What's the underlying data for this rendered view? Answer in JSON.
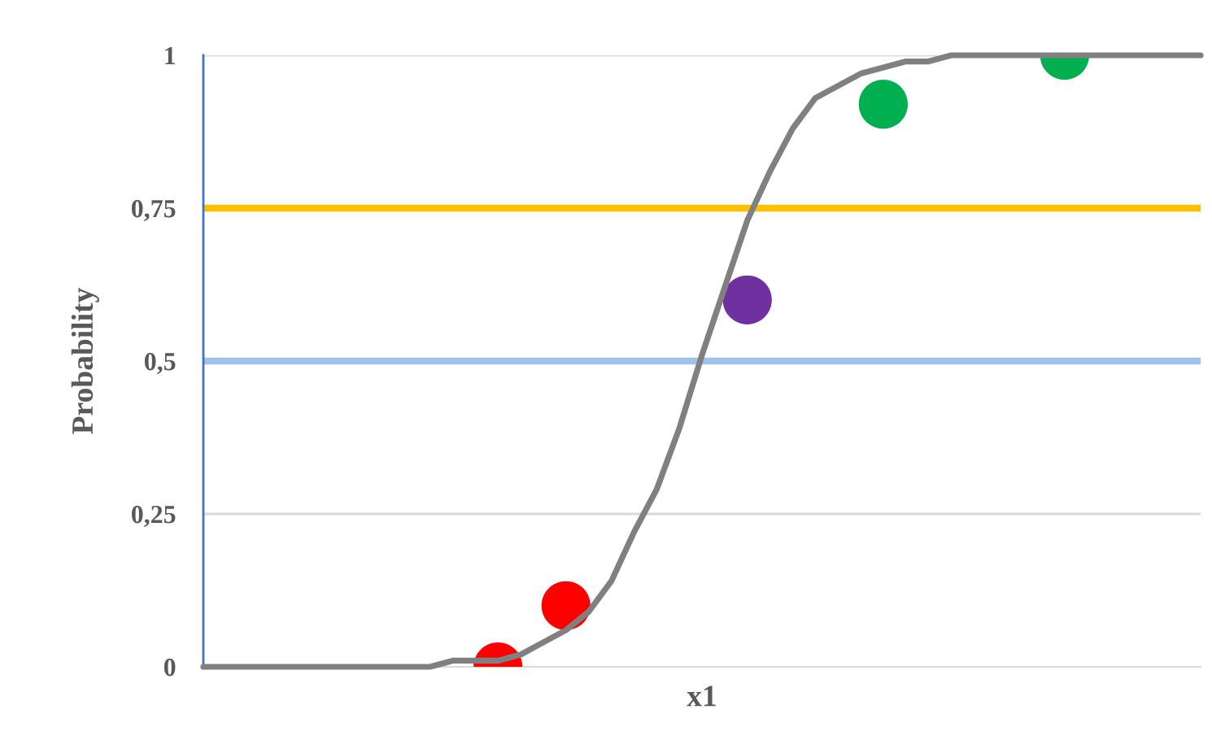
{
  "chart_data": {
    "type": "line",
    "xlabel": "x1",
    "ylabel": "Probability",
    "categories": [
      null,
      null,
      null,
      null,
      null,
      null,
      null,
      null,
      null,
      null,
      null,
      null,
      null,
      null,
      null,
      null,
      null,
      null,
      null,
      null,
      null,
      null,
      null,
      null,
      null,
      null,
      null,
      null,
      null,
      null,
      null,
      null,
      null,
      null,
      null,
      null,
      null,
      null,
      null,
      null,
      null,
      null,
      null,
      null,
      null
    ],
    "series": [
      {
        "color": "#808080",
        "line_style": "solid",
        "values": [
          0,
          0,
          0,
          0,
          0,
          0,
          0,
          0,
          0,
          0,
          0,
          0.01,
          0.01,
          0.01,
          0.02,
          0.04,
          0.06,
          0.09,
          0.14,
          0.22,
          0.29,
          0.39,
          0.51,
          0.62,
          0.73,
          0.81,
          0.88,
          0.93,
          0.95,
          0.97,
          0.98,
          0.99,
          0.99,
          1,
          1,
          1,
          1,
          1,
          1,
          1,
          1,
          1,
          1,
          1,
          1
        ]
      },
      {
        "type": "scatter",
        "color": "#ff0000",
        "marker": "circle",
        "values": [
          null,
          null,
          null,
          null,
          null,
          null,
          null,
          null,
          null,
          null,
          null,
          null,
          null,
          0,
          null,
          null,
          0.1,
          null,
          null,
          null,
          null,
          null,
          null,
          null,
          null,
          null,
          null,
          null,
          null,
          null,
          null,
          null,
          null,
          null,
          null,
          null,
          null,
          null,
          null,
          null,
          null,
          null,
          null,
          null,
          null
        ]
      },
      {
        "type": "scatter",
        "color": "#7030a0",
        "marker": "circle",
        "values": [
          null,
          null,
          null,
          null,
          null,
          null,
          null,
          null,
          null,
          null,
          null,
          null,
          null,
          null,
          null,
          null,
          null,
          null,
          null,
          null,
          null,
          null,
          null,
          null,
          0.6,
          null,
          null,
          null,
          null,
          null,
          null,
          null,
          null,
          null,
          null,
          null,
          null,
          null,
          null,
          null,
          null,
          null,
          null,
          null,
          null
        ]
      },
      {
        "type": "scatter",
        "color": "#00b050",
        "marker": "circle",
        "values": [
          null,
          null,
          null,
          null,
          null,
          null,
          null,
          null,
          null,
          null,
          null,
          null,
          null,
          null,
          null,
          null,
          null,
          null,
          null,
          null,
          null,
          null,
          null,
          null,
          null,
          null,
          null,
          null,
          null,
          null,
          0.92,
          null,
          null,
          null,
          null,
          null,
          null,
          null,
          1,
          null,
          null,
          null,
          null,
          null,
          null
        ]
      }
    ],
    "ylim": [
      0,
      1
    ],
    "yticks": [
      0,
      {
        "value": 0.25,
        "label": "0,25"
      },
      {
        "value": 0.5,
        "label": "0,5"
      },
      {
        "value": 0.75,
        "label": "0,75"
      },
      1
    ],
    "ref_lines": [
      {
        "axis": "y",
        "value": 0.25,
        "color": "#d9d9d9"
      },
      {
        "axis": "y",
        "value": 1,
        "color": "#d9d9d9"
      },
      {
        "axis": "y",
        "value": 0.75,
        "color": "#ffc000"
      },
      {
        "axis": "y",
        "value": 0.5,
        "color": "#9dc3e6"
      }
    ],
    "tick_labels": "y"
  }
}
